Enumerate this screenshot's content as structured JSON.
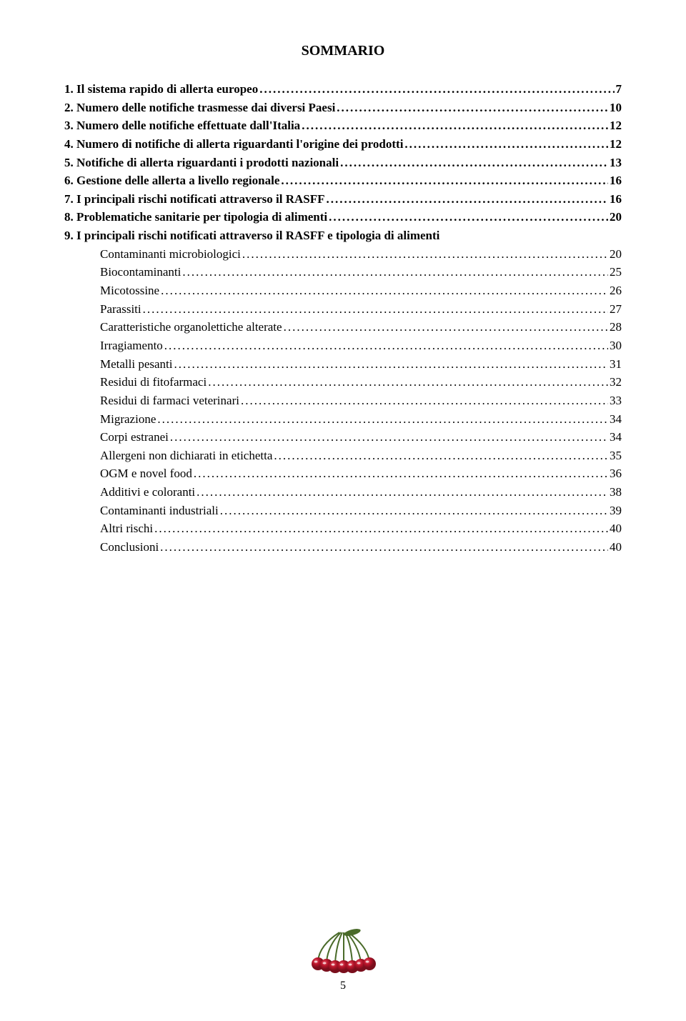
{
  "title": "SOMMARIO",
  "entries": [
    {
      "label": "1. Il sistema rapido di allerta europeo",
      "page": "7",
      "bold": true,
      "indent": false
    },
    {
      "label": "2. Numero delle notifiche trasmesse dai diversi Paesi",
      "page": "10",
      "bold": true,
      "indent": false
    },
    {
      "label": "3. Numero delle notifiche effettuate dall'Italia",
      "page": "12",
      "bold": true,
      "indent": false
    },
    {
      "label": "4. Numero di notifiche di allerta riguardanti l'origine dei prodotti",
      "page": "12",
      "bold": true,
      "indent": false
    },
    {
      "label": "5. Notifiche di allerta riguardanti i prodotti nazionali",
      "page": "13",
      "bold": true,
      "indent": false
    },
    {
      "label": "6. Gestione delle allerta a livello regionale",
      "page": "16",
      "bold": true,
      "indent": false
    },
    {
      "label": "7. I principali rischi notificati attraverso il RASFF",
      "page": "16",
      "bold": true,
      "indent": false
    },
    {
      "label": "8. Problematiche sanitarie per tipologia di alimenti",
      "page": "20",
      "bold": true,
      "indent": false
    },
    {
      "label": "9. I principali rischi notificati attraverso il RASFF e tipologia di alimenti",
      "page": "",
      "bold": true,
      "indent": false,
      "nopage": true
    },
    {
      "label": "Contaminanti microbiologici",
      "page": "20",
      "bold": false,
      "indent": true
    },
    {
      "label": "Biocontaminanti",
      "page": "25",
      "bold": false,
      "indent": true
    },
    {
      "label": "Micotossine",
      "page": "26",
      "bold": false,
      "indent": true
    },
    {
      "label": "Parassiti",
      "page": "27",
      "bold": false,
      "indent": true
    },
    {
      "label": "Caratteristiche organolettiche alterate",
      "page": "28",
      "bold": false,
      "indent": true
    },
    {
      "label": "Irragiamento",
      "page": "30",
      "bold": false,
      "indent": true
    },
    {
      "label": "Metalli pesanti",
      "page": "31",
      "bold": false,
      "indent": true
    },
    {
      "label": "Residui di fitofarmaci",
      "page": "32",
      "bold": false,
      "indent": true
    },
    {
      "label": "Residui di farmaci veterinari",
      "page": "33",
      "bold": false,
      "indent": true
    },
    {
      "label": "Migrazione",
      "page": "34",
      "bold": false,
      "indent": true
    },
    {
      "label": "Corpi estranei",
      "page": "34",
      "bold": false,
      "indent": true
    },
    {
      "label": "Allergeni non dichiarati in etichetta",
      "page": "35",
      "bold": false,
      "indent": true
    },
    {
      "label": "OGM e novel food",
      "page": "36",
      "bold": false,
      "indent": true
    },
    {
      "label": "Additivi e coloranti",
      "page": "38",
      "bold": false,
      "indent": true
    },
    {
      "label": "Contaminanti industriali",
      "page": "39",
      "bold": false,
      "indent": true
    },
    {
      "label": "Altri rischi",
      "page": "40",
      "bold": false,
      "indent": true
    },
    {
      "label": "Conclusioni",
      "page": "40",
      "bold": false,
      "indent": true
    }
  ],
  "pageNumber": "5",
  "cherry": {
    "stem_color": "#4a6b2a",
    "cherry_color": "#b8142a",
    "cherry_highlight": "#e85a6b",
    "cherry_dark": "#7a0e1c"
  }
}
